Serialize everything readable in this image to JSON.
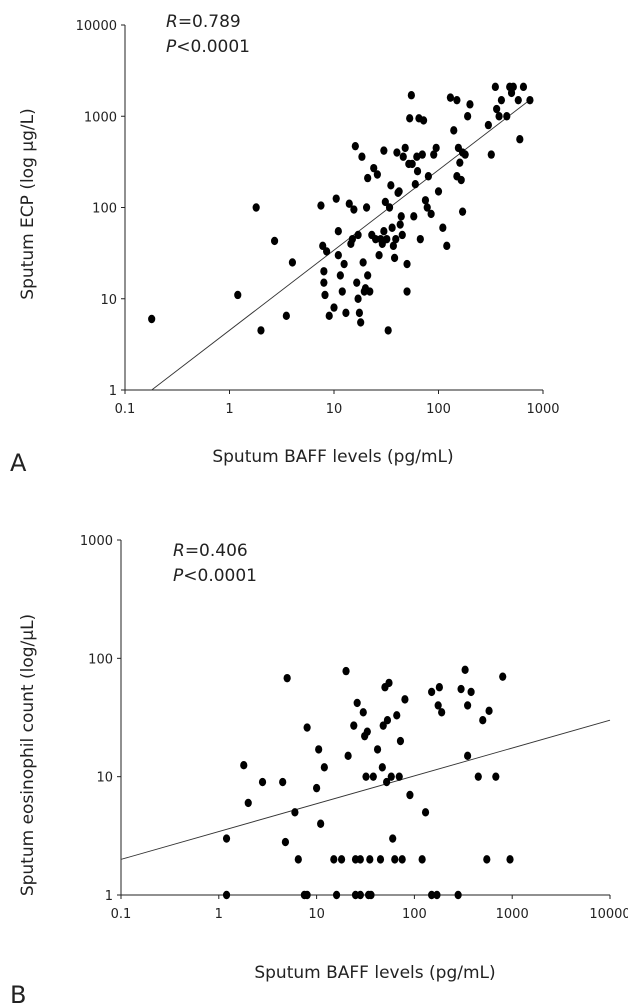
{
  "chart_data": [
    {
      "panel": "A",
      "type": "scatter",
      "title": "",
      "xlabel": "Sputum BAFF levels (pg/mL)",
      "ylabel": "Sputum ECP (log μg/L)",
      "xscale": "log",
      "yscale": "log",
      "xlim": [
        0.1,
        1000
      ],
      "ylim": [
        1,
        10000
      ],
      "xticks": [
        "0.1",
        "1",
        "10",
        "100",
        "1000"
      ],
      "yticks": [
        "1",
        "10",
        "100",
        "1000",
        "10000"
      ],
      "stats": {
        "r_label": "R",
        "r_value": "=0.789",
        "p_label": "P",
        "p_value": "<0.0001"
      },
      "fit_line": {
        "x": [
          0.18,
          800
        ],
        "y": [
          1,
          1600
        ]
      },
      "points": [
        [
          0.18,
          6
        ],
        [
          1.2,
          11
        ],
        [
          1.8,
          100
        ],
        [
          2,
          4.5
        ],
        [
          2.7,
          43
        ],
        [
          3.5,
          6.5
        ],
        [
          4,
          25
        ],
        [
          7.5,
          105
        ],
        [
          7.8,
          38
        ],
        [
          8,
          20
        ],
        [
          8,
          15
        ],
        [
          8.2,
          11
        ],
        [
          8.5,
          33
        ],
        [
          9,
          6.5
        ],
        [
          10,
          8
        ],
        [
          10.5,
          125
        ],
        [
          11,
          55
        ],
        [
          11,
          30
        ],
        [
          11.5,
          18
        ],
        [
          12,
          12
        ],
        [
          12.5,
          24
        ],
        [
          13,
          7
        ],
        [
          14,
          110
        ],
        [
          14.5,
          40
        ],
        [
          15,
          45
        ],
        [
          15.5,
          95
        ],
        [
          16,
          470
        ],
        [
          16.5,
          15
        ],
        [
          17,
          50
        ],
        [
          17,
          10
        ],
        [
          17.5,
          7
        ],
        [
          18,
          5.5
        ],
        [
          18.5,
          360
        ],
        [
          19,
          25
        ],
        [
          19.5,
          12
        ],
        [
          20,
          13
        ],
        [
          20.5,
          100
        ],
        [
          21,
          210
        ],
        [
          21,
          18
        ],
        [
          22,
          12
        ],
        [
          23,
          50
        ],
        [
          24,
          270
        ],
        [
          25,
          45
        ],
        [
          26,
          230
        ],
        [
          27,
          30
        ],
        [
          28,
          45
        ],
        [
          29,
          40
        ],
        [
          30,
          420
        ],
        [
          30,
          55
        ],
        [
          31,
          115
        ],
        [
          32,
          45
        ],
        [
          33,
          4.5
        ],
        [
          34,
          100
        ],
        [
          35,
          175
        ],
        [
          36,
          60
        ],
        [
          37,
          38
        ],
        [
          38,
          28
        ],
        [
          39,
          45
        ],
        [
          40,
          400
        ],
        [
          41,
          145
        ],
        [
          42,
          150
        ],
        [
          43,
          65
        ],
        [
          44,
          80
        ],
        [
          45,
          50
        ],
        [
          46,
          360
        ],
        [
          48,
          450
        ],
        [
          50,
          24
        ],
        [
          50,
          12
        ],
        [
          52,
          300
        ],
        [
          53,
          950
        ],
        [
          55,
          1700
        ],
        [
          56,
          300
        ],
        [
          58,
          80
        ],
        [
          60,
          180
        ],
        [
          62,
          360
        ],
        [
          63,
          250
        ],
        [
          65,
          950
        ],
        [
          67,
          45
        ],
        [
          70,
          380
        ],
        [
          72,
          900
        ],
        [
          75,
          120
        ],
        [
          78,
          100
        ],
        [
          80,
          220
        ],
        [
          85,
          85
        ],
        [
          90,
          380
        ],
        [
          95,
          450
        ],
        [
          100,
          150
        ],
        [
          110,
          60
        ],
        [
          120,
          38
        ],
        [
          130,
          1600
        ],
        [
          140,
          700
        ],
        [
          150,
          1500
        ],
        [
          150,
          220
        ],
        [
          155,
          450
        ],
        [
          160,
          310
        ],
        [
          165,
          200
        ],
        [
          170,
          400
        ],
        [
          170,
          90
        ],
        [
          180,
          380
        ],
        [
          190,
          1000
        ],
        [
          200,
          1350
        ],
        [
          300,
          800
        ],
        [
          320,
          380
        ],
        [
          350,
          2100
        ],
        [
          360,
          1200
        ],
        [
          380,
          1000
        ],
        [
          400,
          1500
        ],
        [
          450,
          1000
        ],
        [
          480,
          2100
        ],
        [
          500,
          1800
        ],
        [
          520,
          2100
        ],
        [
          580,
          1500
        ],
        [
          600,
          560
        ],
        [
          650,
          2100
        ],
        [
          750,
          1500
        ]
      ]
    },
    {
      "panel": "B",
      "type": "scatter",
      "title": "",
      "xlabel": "Sputum BAFF levels (pg/mL)",
      "ylabel": "Sputum eosinophil count (log/μL)",
      "xscale": "log",
      "yscale": "log",
      "xlim": [
        0.1,
        10000
      ],
      "ylim": [
        1,
        1000
      ],
      "xticks": [
        "0.1",
        "1",
        "10",
        "100",
        "1000",
        "10000"
      ],
      "yticks": [
        "1",
        "10",
        "100",
        "1000"
      ],
      "stats": {
        "r_label": "R",
        "r_value": "=0.406",
        "p_label": "P",
        "p_value": "<0.0001"
      },
      "fit_line": {
        "x": [
          0.1,
          10000
        ],
        "y": [
          2,
          30
        ]
      },
      "points": [
        [
          1.2,
          1
        ],
        [
          1.2,
          3
        ],
        [
          1.8,
          12.5
        ],
        [
          2,
          6
        ],
        [
          2.8,
          9
        ],
        [
          4.5,
          9
        ],
        [
          4.8,
          2.8
        ],
        [
          5,
          68
        ],
        [
          6,
          5
        ],
        [
          6.5,
          2
        ],
        [
          7.5,
          1
        ],
        [
          8,
          1
        ],
        [
          8,
          26
        ],
        [
          10,
          8
        ],
        [
          10.5,
          17
        ],
        [
          11,
          4
        ],
        [
          12,
          12
        ],
        [
          15,
          2
        ],
        [
          16,
          1
        ],
        [
          18,
          2
        ],
        [
          20,
          78
        ],
        [
          21,
          15
        ],
        [
          24,
          27
        ],
        [
          25,
          1
        ],
        [
          25,
          2
        ],
        [
          26,
          42
        ],
        [
          28,
          1
        ],
        [
          28,
          2
        ],
        [
          30,
          35
        ],
        [
          31,
          22
        ],
        [
          32,
          10
        ],
        [
          33,
          24
        ],
        [
          34,
          1
        ],
        [
          35,
          2
        ],
        [
          36,
          1
        ],
        [
          38,
          10
        ],
        [
          42,
          17
        ],
        [
          45,
          2
        ],
        [
          47,
          12
        ],
        [
          48,
          27
        ],
        [
          50,
          57
        ],
        [
          52,
          9
        ],
        [
          53,
          30
        ],
        [
          55,
          62
        ],
        [
          58,
          10
        ],
        [
          60,
          3
        ],
        [
          63,
          2
        ],
        [
          66,
          33
        ],
        [
          70,
          10
        ],
        [
          72,
          20
        ],
        [
          75,
          2
        ],
        [
          80,
          45
        ],
        [
          90,
          7
        ],
        [
          120,
          2
        ],
        [
          130,
          5
        ],
        [
          150,
          52
        ],
        [
          150,
          1
        ],
        [
          170,
          1
        ],
        [
          175,
          40
        ],
        [
          180,
          57
        ],
        [
          190,
          35
        ],
        [
          280,
          1
        ],
        [
          300,
          55
        ],
        [
          330,
          80
        ],
        [
          350,
          15
        ],
        [
          350,
          40
        ],
        [
          380,
          52
        ],
        [
          450,
          10
        ],
        [
          500,
          30
        ],
        [
          550,
          2
        ],
        [
          580,
          36
        ],
        [
          680,
          10
        ],
        [
          800,
          70
        ],
        [
          950,
          2
        ]
      ]
    }
  ]
}
